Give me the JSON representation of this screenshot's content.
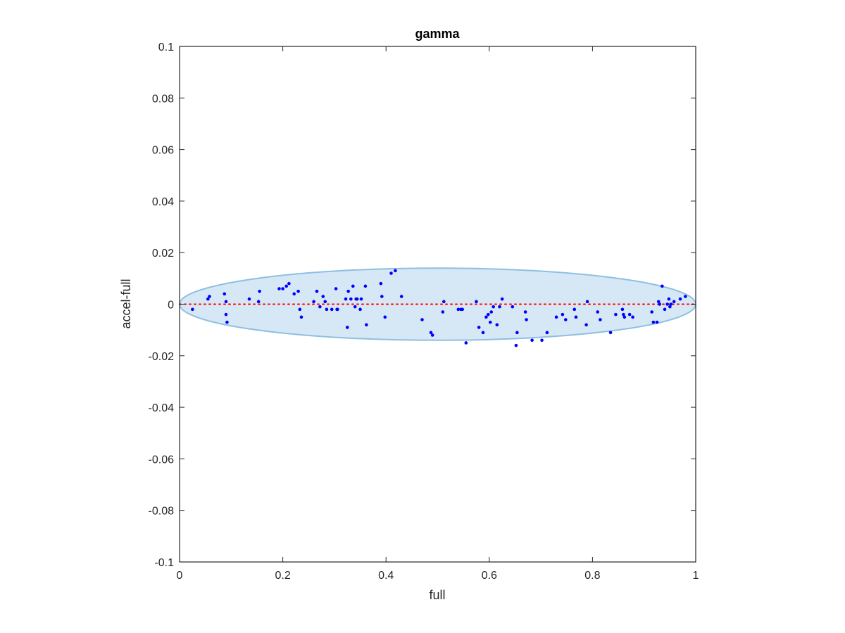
{
  "chart_data": {
    "type": "scatter",
    "title": "gamma",
    "xlabel": "full",
    "ylabel": "accel-full",
    "xlim": [
      0,
      1
    ],
    "ylim": [
      -0.1,
      0.1
    ],
    "xticks": [
      0,
      0.2,
      0.4,
      0.6,
      0.8,
      1
    ],
    "xtick_labels": [
      "0",
      "0.2",
      "0.4",
      "0.6",
      "0.8",
      "1"
    ],
    "yticks": [
      -0.1,
      -0.08,
      -0.06,
      -0.04,
      -0.02,
      0,
      0.02,
      0.04,
      0.06,
      0.08,
      0.1
    ],
    "ytick_labels": [
      "-0.1",
      "-0.08",
      "-0.06",
      "-0.04",
      "-0.02",
      "0",
      "0.02",
      "0.04",
      "0.06",
      "0.08",
      "0.1"
    ],
    "grid": false,
    "reference_line": {
      "y": 0,
      "color": "#ff0000",
      "style": "dotted"
    },
    "ellipse": {
      "center_x": 0.5,
      "center_y": 0,
      "semi_x": 0.5,
      "semi_y": 0.014,
      "fill": "#d6e8f5",
      "stroke": "#8dbfe2"
    },
    "point_color": "#0000ff",
    "x": [
      0.025,
      0.055,
      0.058,
      0.087,
      0.09,
      0.09,
      0.092,
      0.135,
      0.153,
      0.155,
      0.193,
      0.2,
      0.207,
      0.212,
      0.222,
      0.23,
      0.233,
      0.236,
      0.26,
      0.266,
      0.272,
      0.278,
      0.282,
      0.285,
      0.295,
      0.303,
      0.305,
      0.306,
      0.322,
      0.325,
      0.327,
      0.332,
      0.336,
      0.34,
      0.342,
      0.344,
      0.35,
      0.352,
      0.36,
      0.362,
      0.39,
      0.392,
      0.398,
      0.41,
      0.418,
      0.43,
      0.47,
      0.487,
      0.49,
      0.51,
      0.512,
      0.54,
      0.545,
      0.548,
      0.555,
      0.575,
      0.58,
      0.588,
      0.594,
      0.598,
      0.602,
      0.604,
      0.608,
      0.615,
      0.62,
      0.625,
      0.645,
      0.652,
      0.654,
      0.67,
      0.672,
      0.683,
      0.702,
      0.712,
      0.73,
      0.742,
      0.748,
      0.765,
      0.768,
      0.788,
      0.79,
      0.81,
      0.815,
      0.835,
      0.845,
      0.858,
      0.86,
      0.862,
      0.872,
      0.878,
      0.915,
      0.918,
      0.925,
      0.928,
      0.93,
      0.935,
      0.94,
      0.945,
      0.948,
      0.95,
      0.952,
      0.958,
      0.97,
      0.98
    ],
    "y": [
      -0.002,
      0.002,
      0.003,
      0.004,
      0.001,
      -0.004,
      -0.007,
      0.002,
      0.001,
      0.005,
      0.006,
      0.006,
      0.007,
      0.008,
      0.004,
      0.005,
      -0.002,
      -0.005,
      0.001,
      0.005,
      -0.001,
      0.003,
      0.001,
      -0.002,
      -0.002,
      0.006,
      -0.002,
      -0.002,
      0.002,
      -0.009,
      0.005,
      0.002,
      0.007,
      -0.001,
      0.002,
      0.002,
      -0.002,
      0.002,
      0.007,
      -0.008,
      0.008,
      0.003,
      -0.005,
      0.012,
      0.013,
      0.003,
      -0.006,
      -0.011,
      -0.012,
      -0.003,
      0.001,
      -0.002,
      -0.002,
      -0.002,
      -0.015,
      0.001,
      -0.009,
      -0.011,
      -0.005,
      -0.004,
      -0.007,
      -0.003,
      -0.001,
      -0.008,
      -0.001,
      0.002,
      -0.001,
      -0.016,
      -0.011,
      -0.003,
      -0.006,
      -0.014,
      -0.014,
      -0.011,
      -0.005,
      -0.004,
      -0.006,
      -0.002,
      -0.005,
      -0.008,
      0.001,
      -0.003,
      -0.006,
      -0.011,
      -0.004,
      -0.002,
      -0.004,
      -0.005,
      -0.004,
      -0.005,
      -0.003,
      -0.007,
      -0.007,
      0.001,
      0.0,
      0.007,
      -0.002,
      0.0,
      0.002,
      -0.001,
      0.0,
      0.001,
      0.002,
      0.003
    ]
  }
}
